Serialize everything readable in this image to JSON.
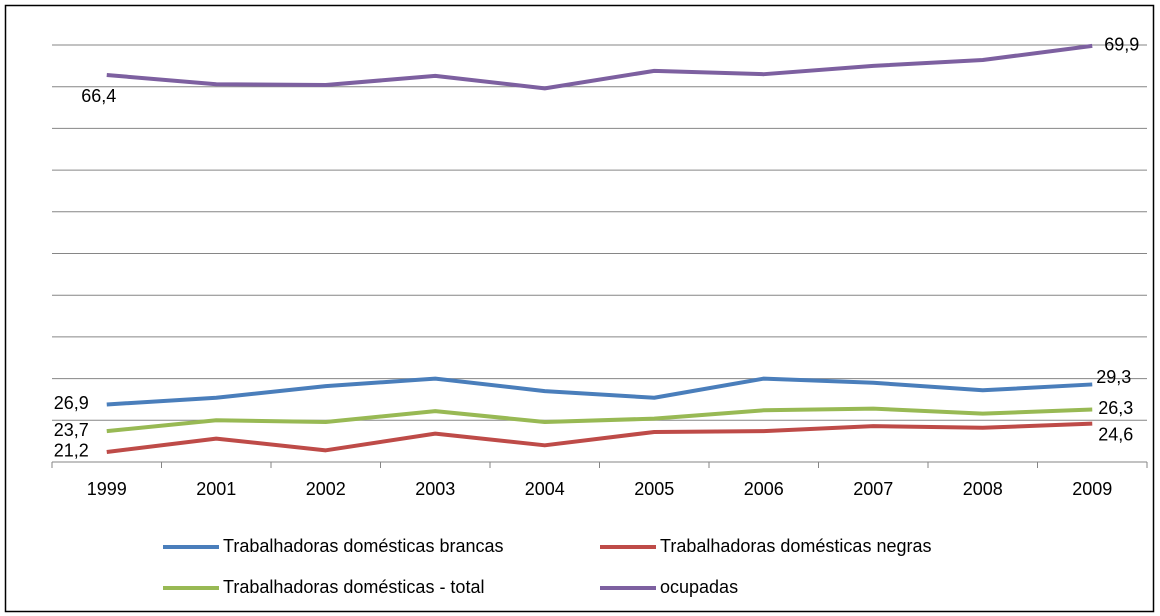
{
  "chart_data": {
    "type": "line",
    "categories": [
      "1999",
      "2001",
      "2002",
      "2003",
      "2004",
      "2005",
      "2006",
      "2007",
      "2008",
      "2009"
    ],
    "ylim": [
      20,
      70
    ],
    "yticks": [
      20,
      25,
      30,
      35,
      40,
      45,
      50,
      55,
      60,
      65,
      70
    ],
    "grid": true,
    "series": [
      {
        "name": "Trabalhadoras domésticas brancas",
        "color": "#4a7ebb",
        "values": [
          26.9,
          27.7,
          29.1,
          30.0,
          28.5,
          27.7,
          30.0,
          29.5,
          28.6,
          29.3
        ],
        "value_labels": [
          "26,9",
          null,
          null,
          null,
          null,
          null,
          null,
          null,
          null,
          "29,3"
        ]
      },
      {
        "name": "Trabalhadoras domésticas negras",
        "color": "#be4b48",
        "values": [
          21.2,
          22.8,
          21.4,
          23.4,
          22.0,
          23.6,
          23.7,
          24.3,
          24.1,
          24.6
        ],
        "value_labels": [
          "21,2",
          null,
          null,
          null,
          null,
          null,
          null,
          null,
          null,
          "24,6"
        ]
      },
      {
        "name": "Trabalhadoras domésticas - total",
        "color": "#98b954",
        "values": [
          23.7,
          25.0,
          24.8,
          26.1,
          24.8,
          25.2,
          26.2,
          26.4,
          25.8,
          26.3
        ],
        "value_labels": [
          "23,7",
          null,
          null,
          null,
          null,
          null,
          null,
          null,
          null,
          "26,3"
        ]
      },
      {
        "name": "ocupadas",
        "color": "#7d60a0",
        "values": [
          66.4,
          65.3,
          65.2,
          66.3,
          64.8,
          66.9,
          66.5,
          67.5,
          68.2,
          69.9
        ],
        "value_labels": [
          "66,4",
          null,
          null,
          null,
          null,
          null,
          null,
          null,
          null,
          "69,9"
        ]
      }
    ]
  }
}
